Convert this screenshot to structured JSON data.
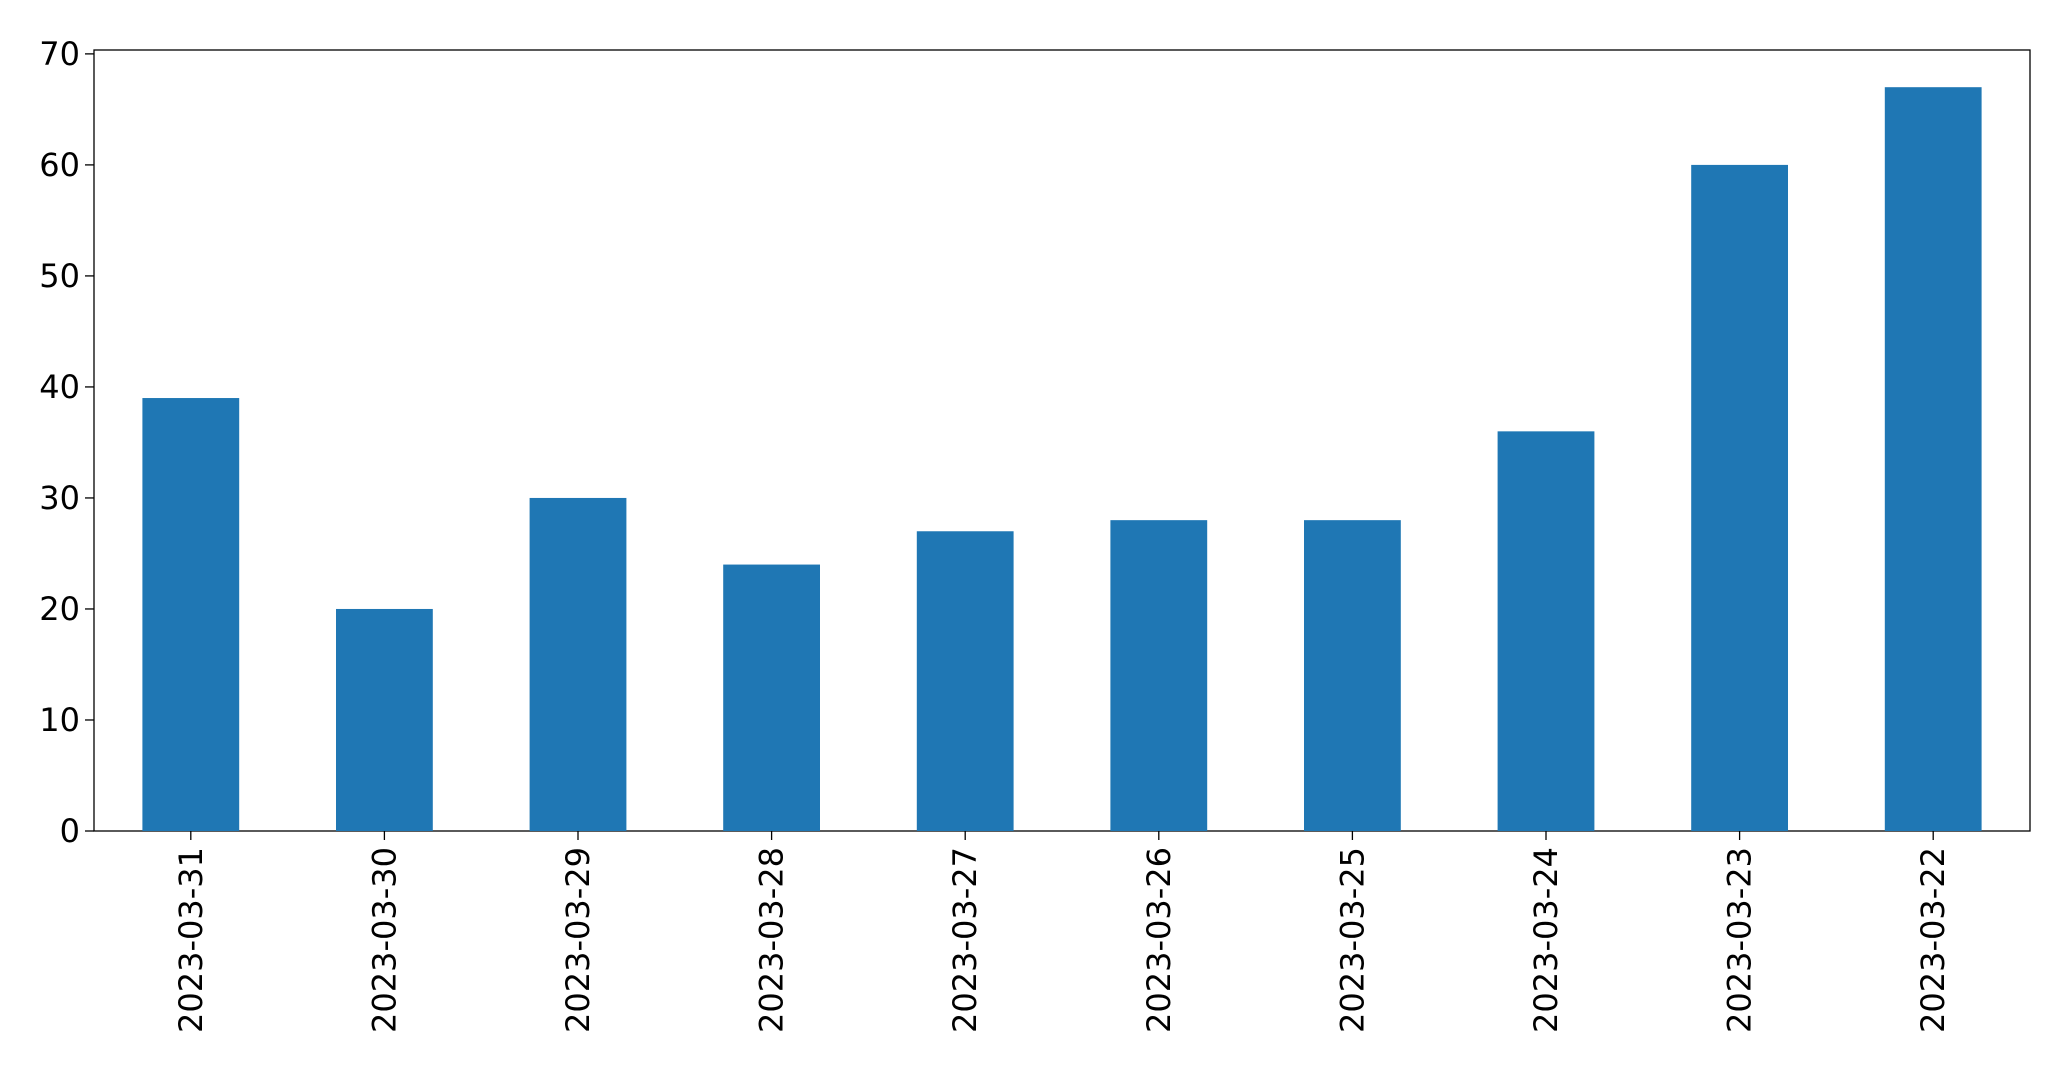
{
  "chart_data": {
    "type": "bar",
    "categories": [
      "2023-03-31",
      "2023-03-30",
      "2023-03-29",
      "2023-03-28",
      "2023-03-27",
      "2023-03-26",
      "2023-03-25",
      "2023-03-24",
      "2023-03-23",
      "2023-03-22"
    ],
    "values": [
      39,
      20,
      30,
      24,
      27,
      28,
      28,
      36,
      60,
      67
    ],
    "color": "#1f77b4",
    "ylim": [
      0,
      70.35
    ],
    "yticks": [
      0,
      10,
      20,
      30,
      40,
      50,
      60,
      70
    ],
    "grid": false
  }
}
